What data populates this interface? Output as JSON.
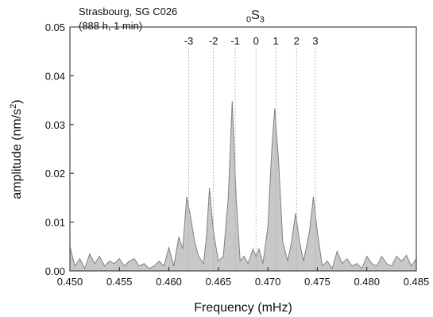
{
  "chart_data": {
    "type": "area",
    "station": "Strasbourg, SG C026",
    "record": "(888 h, 1 min)",
    "mode": {
      "prefix": "0",
      "letter": "S",
      "suffix": "3"
    },
    "xlabel": "Frequency (mHz)",
    "ylabel": [
      "amplitude (nm/s",
      "2",
      ")"
    ],
    "color": "#c8c8c8",
    "line_color": "#808080",
    "x": [
      0.45,
      0.4505,
      0.451,
      0.4515,
      0.452,
      0.4525,
      0.453,
      0.4535,
      0.454,
      0.4545,
      0.455,
      0.4555,
      0.456,
      0.4565,
      0.457,
      0.4575,
      0.458,
      0.4585,
      0.459,
      0.4595,
      0.46,
      0.4605,
      0.461,
      0.4614,
      0.4618,
      0.4622,
      0.4626,
      0.463,
      0.4635,
      0.4638,
      0.4641,
      0.4645,
      0.465,
      0.4655,
      0.466,
      0.4664,
      0.4668,
      0.4672,
      0.4676,
      0.468,
      0.4685,
      0.4688,
      0.4691,
      0.4695,
      0.47,
      0.4704,
      0.4707,
      0.4711,
      0.4715,
      0.472,
      0.4724,
      0.4728,
      0.4732,
      0.4736,
      0.4742,
      0.4746,
      0.475,
      0.4755,
      0.476,
      0.4765,
      0.477,
      0.4775,
      0.478,
      0.4785,
      0.479,
      0.4795,
      0.48,
      0.4805,
      0.481,
      0.4815,
      0.482,
      0.4825,
      0.483,
      0.4835,
      0.484,
      0.4845,
      0.485
    ],
    "values": [
      0.005,
      0.001,
      0.0025,
      0.0005,
      0.0035,
      0.0015,
      0.003,
      0.001,
      0.002,
      0.0015,
      0.0025,
      0.001,
      0.002,
      0.0025,
      0.001,
      0.0015,
      0.0005,
      0.001,
      0.002,
      0.001,
      0.0048,
      0.001,
      0.007,
      0.0045,
      0.0152,
      0.011,
      0.006,
      0.003,
      0.0015,
      0.007,
      0.017,
      0.008,
      0.002,
      0.003,
      0.015,
      0.0348,
      0.015,
      0.002,
      0.003,
      0.0015,
      0.0045,
      0.003,
      0.0045,
      0.0015,
      0.009,
      0.025,
      0.0333,
      0.022,
      0.006,
      0.002,
      0.006,
      0.0118,
      0.006,
      0.002,
      0.008,
      0.0152,
      0.008,
      0.001,
      0.002,
      0.0005,
      0.004,
      0.0015,
      0.0025,
      0.001,
      0.0015,
      0.0005,
      0.003,
      0.0015,
      0.001,
      0.003,
      0.0015,
      0.001,
      0.003,
      0.002,
      0.0032,
      0.001,
      0.0025
    ],
    "singlets": [
      {
        "label": "-3",
        "freq": 0.462
      },
      {
        "label": "-2",
        "freq": 0.4645
      },
      {
        "label": "-1",
        "freq": 0.4667
      },
      {
        "label": "0",
        "freq": 0.4688
      },
      {
        "label": "1",
        "freq": 0.4708
      },
      {
        "label": "2",
        "freq": 0.4729
      },
      {
        "label": "3",
        "freq": 0.4748
      }
    ],
    "xlim": [
      0.45,
      0.485
    ],
    "ylim": [
      0,
      0.05
    ],
    "xticks": [
      {
        "value": 0.45,
        "label": "0.450"
      },
      {
        "value": 0.455,
        "label": "0.455"
      },
      {
        "value": 0.46,
        "label": "0.460"
      },
      {
        "value": 0.465,
        "label": "0.465"
      },
      {
        "value": 0.47,
        "label": "0.470"
      },
      {
        "value": 0.475,
        "label": "0.475"
      },
      {
        "value": 0.48,
        "label": "0.480"
      },
      {
        "value": 0.485,
        "label": "0.485"
      }
    ],
    "yticks": [
      {
        "value": 0,
        "label": "0.00"
      },
      {
        "value": 0.01,
        "label": "0.01"
      },
      {
        "value": 0.02,
        "label": "0.02"
      },
      {
        "value": 0.03,
        "label": "0.03"
      },
      {
        "value": 0.04,
        "label": "0.04"
      },
      {
        "value": 0.05,
        "label": "0.05"
      }
    ]
  }
}
